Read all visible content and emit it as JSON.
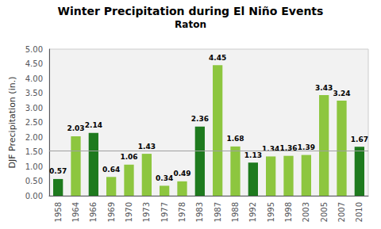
{
  "chart_data": {
    "type": "bar",
    "title": "Winter Precipitation during El Niño Events",
    "subtitle": "Raton",
    "ylabel": "DJF Precipitation (in.)",
    "categories": [
      "1958",
      "1964",
      "1966",
      "1969",
      "1970",
      "1973",
      "1977",
      "1978",
      "1983",
      "1987",
      "1988",
      "1992",
      "1995",
      "1998",
      "2003",
      "2005",
      "2007",
      "2010"
    ],
    "values": [
      0.57,
      2.03,
      2.14,
      0.64,
      1.06,
      1.43,
      0.34,
      0.49,
      2.36,
      4.45,
      1.68,
      1.13,
      1.34,
      1.36,
      1.39,
      3.43,
      3.24,
      1.67
    ],
    "colors": [
      "#1e7a1e",
      "#8dc63f",
      "#1e7a1e",
      "#8dc63f",
      "#8dc63f",
      "#8dc63f",
      "#8dc63f",
      "#8dc63f",
      "#1e7a1e",
      "#8dc63f",
      "#8dc63f",
      "#1e7a1e",
      "#8dc63f",
      "#8dc63f",
      "#8dc63f",
      "#8dc63f",
      "#8dc63f",
      "#1e7a1e"
    ],
    "reference_line": {
      "value": 1.53,
      "color": "#a0a0a0"
    },
    "ylim": [
      0.0,
      5.0
    ],
    "yticks": [
      {
        "value": 0,
        "label": "0.00"
      },
      {
        "value": 0.5,
        "label": "0.50"
      },
      {
        "value": 1,
        "label": "1.00"
      },
      {
        "value": 1.5,
        "label": "1.50"
      },
      {
        "value": 2,
        "label": "2.00"
      },
      {
        "value": 2.5,
        "label": "2.50"
      },
      {
        "value": 3,
        "label": "3.00"
      },
      {
        "value": 3.5,
        "label": "3.50"
      },
      {
        "value": 4,
        "label": "4.00"
      },
      {
        "value": 4.5,
        "label": "4.50"
      },
      {
        "value": 5,
        "label": "5.00"
      }
    ],
    "data_labels": true,
    "grid": false
  }
}
